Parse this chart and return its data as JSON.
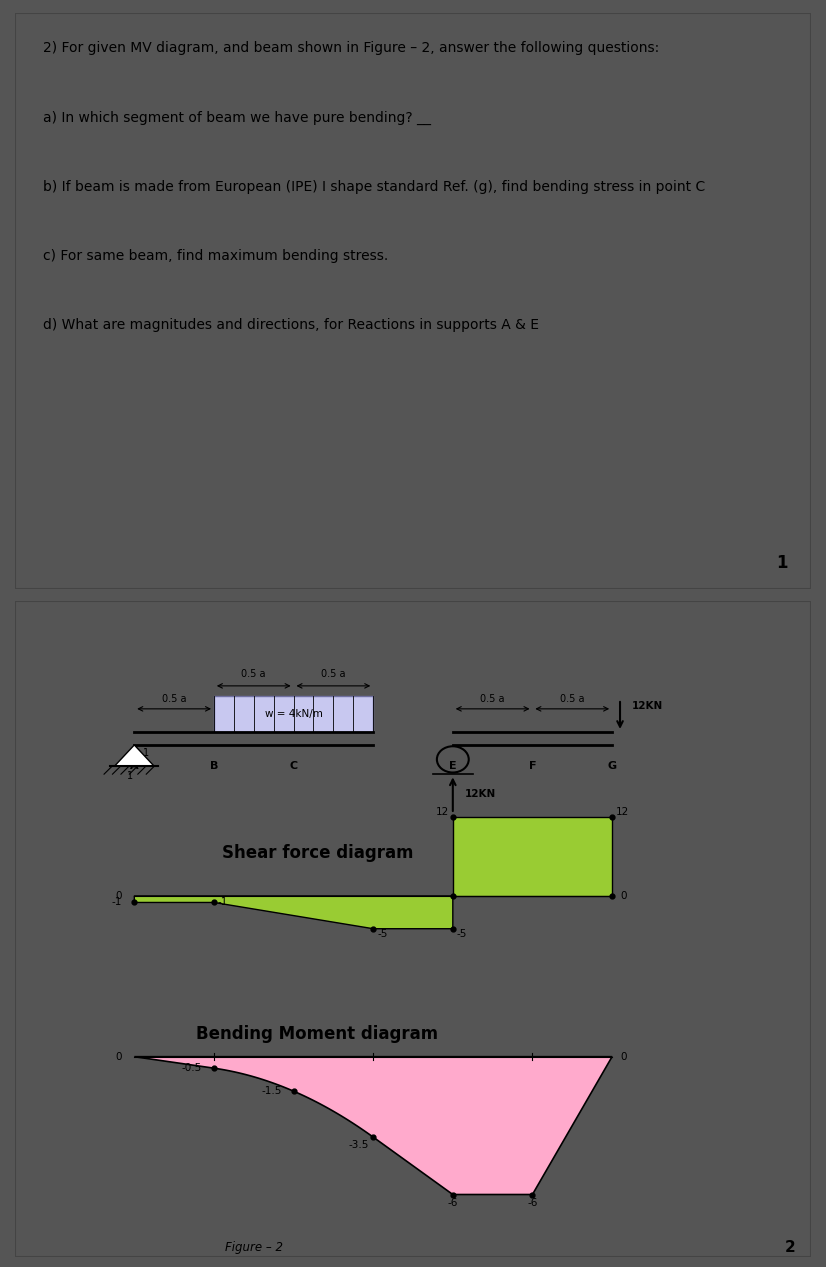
{
  "page1_text": [
    "2) For given MV diagram, and beam shown in Figure – 2, answer the following questions:",
    "a) In which segment of beam we have pure bending? __",
    "b) If beam is made from European (IPE) I shape standard Ref. (g), find bending stress in point C",
    "c) For same beam, find maximum bending stress.",
    "d) What are magnitudes and directions, for Reactions in supports A & E"
  ],
  "page1_number": "1",
  "page2_number": "2",
  "load_label": "w = 4kN/m",
  "force_label": "12KN",
  "shear_title": "Shear force diagram",
  "moment_title": "Bending Moment diagram",
  "figure_label": "Figure – 2",
  "sfd_color": "#99cc33",
  "bmd_color": "#ffaacc",
  "beam_fill_color": "#c8c8f0",
  "separator_color": "#333333",
  "page_bg": "#ffffff",
  "outer_bg": "#555555"
}
